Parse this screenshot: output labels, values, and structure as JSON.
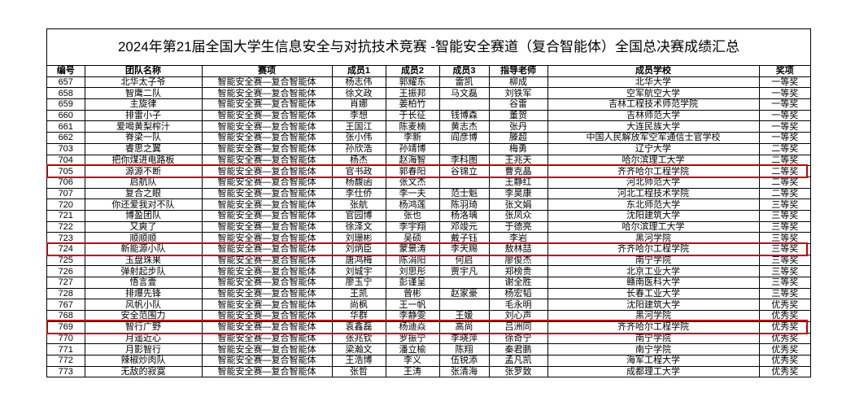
{
  "title": "2024年第21届全国大学生信息安全与对抗技术竞赛 -智能安全赛道（复合智能体）全国总决赛成绩汇总",
  "table": {
    "header": [
      "编号",
      "团队名称",
      "赛项",
      "成员1",
      "成员2",
      "成员3",
      "指导老师",
      "成员学校",
      "奖项"
    ],
    "rows": [
      [
        "657",
        "北华太子爷",
        "智能安全赛—复合智能体",
        "杨志伟",
        "郭耀东",
        "雷凯",
        "柳成",
        "北华大学",
        "一等奖"
      ],
      [
        "658",
        "智鹰二队",
        "智能安全赛—复合智能体",
        "徐文政",
        "王振邦",
        "马文磊",
        "刘铁军",
        "空军航空大学",
        "一等奖"
      ],
      [
        "659",
        "主旋律",
        "智能安全赛—复合智能体",
        "肖娜",
        "姜柏竹",
        null,
        "谷雷",
        "吉林工程技术师范学院",
        "一等奖"
      ],
      [
        "660",
        "排雷小子",
        "智能安全赛—复合智能体",
        "李想",
        "于长征",
        "钱博森",
        "董贺",
        "吉林师范大学",
        "一等奖"
      ],
      [
        "661",
        "爱喝黄梨榨汁",
        "智能安全赛—复合智能体",
        "王国江",
        "陈麦楠",
        "黄志杰",
        "张丹",
        "大连民族大学",
        "一等奖"
      ],
      [
        "662",
        "脊梁一队",
        "智能安全赛—复合智能体",
        "张小伟",
        "李新",
        "阎彦博",
        "滕超",
        "中国人民解放军空军通信士官学校",
        "一等奖"
      ],
      [
        "703",
        "睿思之翼",
        "智能安全赛—复合智能体",
        "孙欣浩",
        "孙靖博",
        null,
        "梅勇",
        "辽宁大学",
        "二等奖"
      ],
      [
        "704",
        "把你煤进电路板",
        "智能安全赛—复合智能体",
        "杨杰",
        "赵海智",
        "李科图",
        "王兆天",
        "哈尔滨理工大学",
        "二等奖"
      ],
      [
        "705",
        "源源不断",
        "智能安全赛—复合智能体",
        "官书政",
        "郭春阳",
        "谷锦立",
        "曹克晶",
        "齐齐哈尔工程学院",
        "二等奖"
      ],
      [
        "706",
        "启航队",
        "智能安全赛—复合智能体",
        "杨馥函",
        "张文杰",
        null,
        "王静红",
        "河北师范大学",
        "二等奖"
      ],
      [
        "707",
        "复合之眼",
        "智能安全赛—复合智能体",
        "李仕侨",
        "李一夫",
        "范士魁",
        "李昊康",
        "河北工程技术学院",
        "二等奖"
      ],
      [
        "720",
        "你还爱我对不队",
        "智能安全赛—复合智能体",
        "张航",
        "杨鸿莲",
        "陈羽琦",
        "张文娟",
        "东北师范大学",
        "三等奖"
      ],
      [
        "721",
        "博盈团队",
        "智能安全赛—复合智能体",
        "官园博",
        "张也",
        "杨洛瑀",
        "张凤众",
        "沈阳建筑大学",
        "三等奖"
      ],
      [
        "722",
        "又爽了",
        "智能安全赛—复合智能体",
        "徐泽文",
        "李宇翔",
        "邓竣元",
        "于德亮",
        "哈尔滨理工大学",
        "三等奖"
      ],
      [
        "723",
        "顺顺顺",
        "智能安全赛—复合智能体",
        "刘珊彬",
        "吴硕",
        "戴子钰",
        "李岩",
        "黑河学院",
        "三等奖"
      ],
      [
        "724",
        "新能源小队",
        "智能安全赛—复合智能体",
        "刘炳臣",
        "蒙景涛",
        "李天赐",
        "敖林喆",
        "齐齐哈尔工程学院",
        "三等奖"
      ],
      [
        "725",
        "玉盘珠果",
        "智能安全赛—复合智能体",
        "唐鸿梅",
        "陈涓阳",
        "何启",
        "廖俊杰",
        "南宁学院",
        "三等奖"
      ],
      [
        "726",
        "弹射起步队",
        "智能安全赛—复合智能体",
        "刘城宇",
        "刘思彤",
        "贾宇凡",
        "郑榜贵",
        "北京工业大学",
        "三等奖"
      ],
      [
        "727",
        "悟言壹",
        "智能安全赛—复合智能体",
        "廖玉宁",
        "彭谨呈",
        null,
        "谢全胜",
        "赣南医科大学",
        "三等奖"
      ],
      [
        "728",
        "排爆先锋",
        "智能安全赛—复合智能体",
        "王凯",
        "曾彬",
        "赵家豪",
        "杨宏韬",
        "长春工业大学",
        "三等奖"
      ],
      [
        "767",
        "风帆小队",
        "智能安全赛—复合智能体",
        "尚枫",
        "王一帆",
        null,
        "毛永明",
        "沈阳建筑大学",
        "优秀奖"
      ],
      [
        "768",
        "安全范围力",
        "智能安全赛—复合智能体",
        "华群",
        "李静雯",
        "王媛",
        "刘心声",
        "黑河学院",
        "优秀奖"
      ],
      [
        "769",
        "智行广野",
        "智能安全赛—复合智能体",
        "袁鑫磊",
        "杨迪焱",
        "高尚",
        "吕洲同",
        "齐齐哈尔工程学院",
        "优秀奖"
      ],
      [
        "770",
        "月遥近心",
        "智能安全赛—复合智能体",
        "张兆钦",
        "罗振宁",
        "李晓萍",
        "徐奇宁",
        "南宁学院",
        "优秀奖"
      ],
      [
        "771",
        "月影智行",
        "智能安全赛—复合智能体",
        "梁瀚文",
        "潘立榆",
        "陈翔",
        "秦君鹏",
        "南宁学院",
        "优秀奖"
      ],
      [
        "772",
        "辣椒炒肉队",
        "智能安全赛—复合智能体",
        "王浩博",
        "李义",
        "伍锐添",
        "孟凡凯",
        "海军工程大学",
        "优秀奖"
      ],
      [
        "773",
        "无敌的寂寞",
        "智能安全赛—复合智能体",
        "张哲",
        "王涛",
        "张清海",
        "张罗致",
        "成都理工大学",
        "优秀奖"
      ]
    ]
  }
}
